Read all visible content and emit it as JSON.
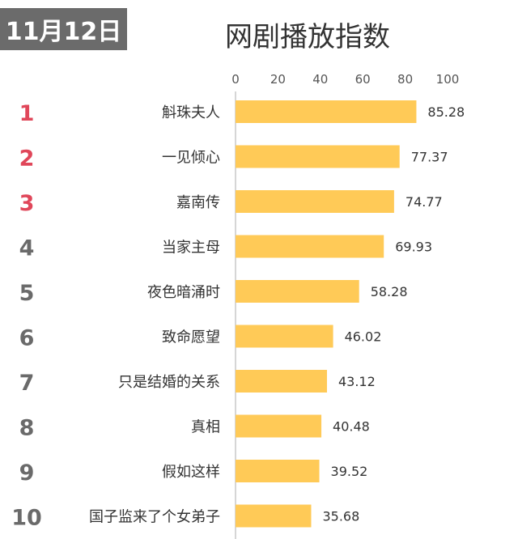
{
  "date": "11月12日",
  "chart_data": {
    "type": "bar",
    "orientation": "horizontal",
    "title": "网剧播放指数",
    "xlim": [
      0,
      100
    ],
    "x_ticks": [
      "0",
      "20",
      "40",
      "60",
      "80",
      "100"
    ],
    "ranks": [
      "1",
      "2",
      "3",
      "4",
      "5",
      "6",
      "7",
      "8",
      "9",
      "10"
    ],
    "categories": [
      "斛珠夫人",
      "一见倾心",
      "嘉南传",
      "当家主母",
      "夜色暗涌时",
      "致命愿望",
      "只是结婚的关系",
      "真相",
      "假如这样",
      "国子监来了个女弟子"
    ],
    "values": [
      85.28,
      77.37,
      74.77,
      69.93,
      58.28,
      46.02,
      43.12,
      40.48,
      39.52,
      35.68
    ],
    "value_labels": [
      "85.28",
      "77.37",
      "74.77",
      "69.93",
      "58.28",
      "46.02",
      "43.12",
      "40.48",
      "39.52",
      "35.68"
    ],
    "colors": {
      "bar": "#FFCA57",
      "rank_top": "#E0475A",
      "rank_other": "#6a6a6a",
      "axis": "#c8c8c8",
      "label": "#333333",
      "tick": "#555555"
    }
  }
}
